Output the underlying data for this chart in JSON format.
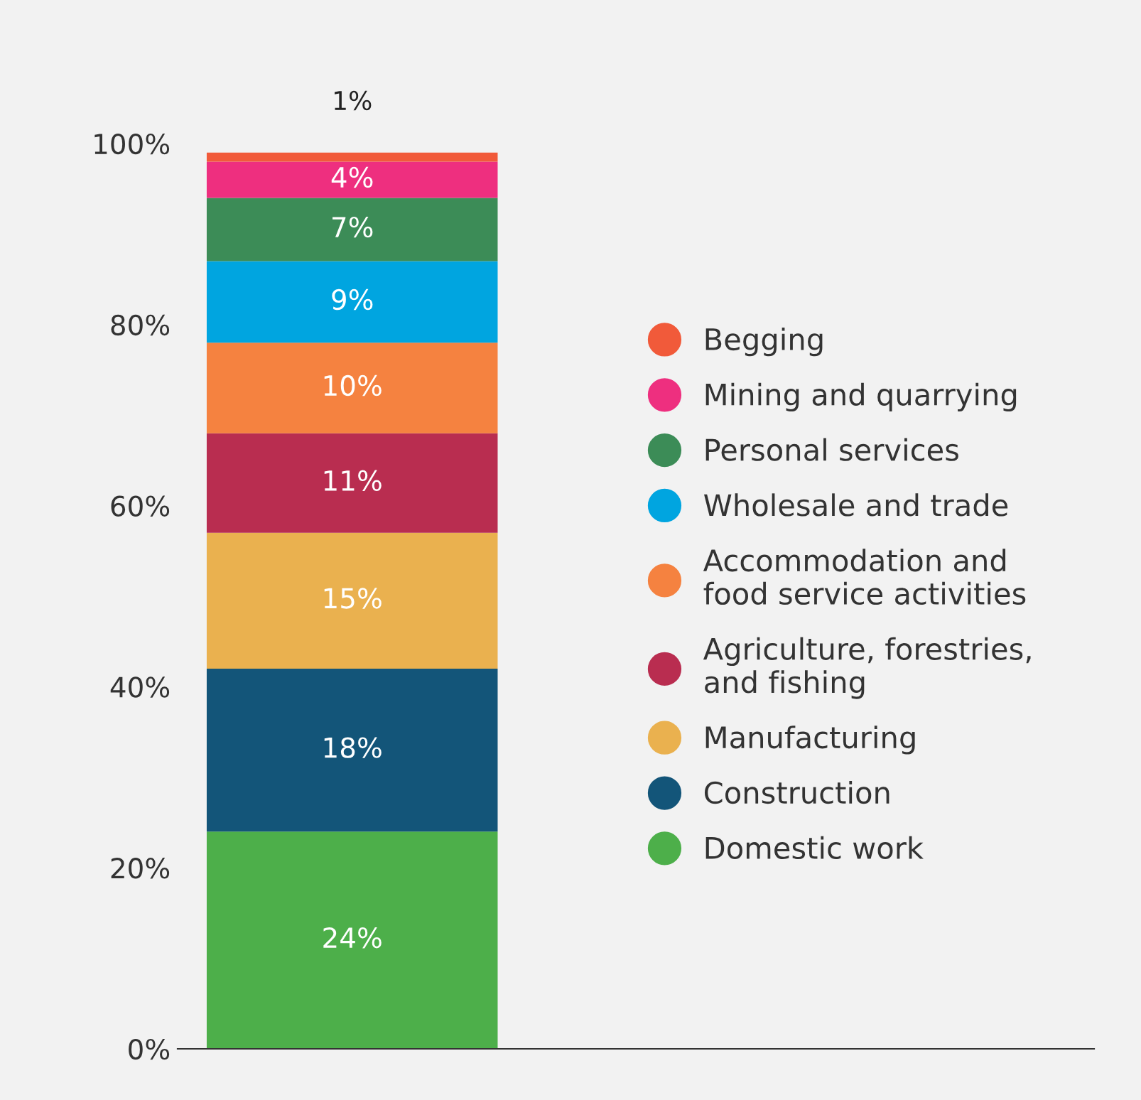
{
  "chart_data": {
    "type": "bar",
    "stacked": true,
    "categories": [
      null
    ],
    "series": [
      {
        "name": "Domestic work",
        "color": "#4daf4a",
        "values": [
          24
        ],
        "value_labels": [
          "24%"
        ]
      },
      {
        "name": "Construction",
        "color": "#135579",
        "values": [
          18
        ],
        "value_labels": [
          "18%"
        ]
      },
      {
        "name": "Manufacturing",
        "color": "#eab14f",
        "values": [
          15
        ],
        "value_labels": [
          "15%"
        ]
      },
      {
        "name": "Agriculture, forestries,\nand fishing",
        "color": "#b92d50",
        "values": [
          11
        ],
        "value_labels": [
          "11%"
        ]
      },
      {
        "name": "Accommodation and\nfood service activities",
        "color": "#f58240",
        "values": [
          10
        ],
        "value_labels": [
          "10%"
        ]
      },
      {
        "name": "Wholesale and trade",
        "color": "#00a5e0",
        "values": [
          9
        ],
        "value_labels": [
          "9%"
        ]
      },
      {
        "name": "Personal services",
        "color": "#3c8c57",
        "values": [
          7
        ],
        "value_labels": [
          "7%"
        ]
      },
      {
        "name": "Mining and quarrying",
        "color": "#ee2f7f",
        "values": [
          4
        ],
        "value_labels": [
          "4%"
        ]
      },
      {
        "name": "Begging",
        "color": "#f15a3a",
        "values": [
          1
        ],
        "value_labels": [
          "1%"
        ]
      }
    ],
    "ylim": [
      0,
      100
    ],
    "yticks": [
      {
        "value": 0,
        "label": "0%"
      },
      {
        "value": 20,
        "label": "20%"
      },
      {
        "value": 40,
        "label": "40%"
      },
      {
        "value": 60,
        "label": "60%"
      },
      {
        "value": 80,
        "label": "80%"
      },
      {
        "value": 100,
        "label": "100%"
      }
    ],
    "tick_labels": "y",
    "grid": false,
    "legend": "right",
    "marker": "circle"
  }
}
